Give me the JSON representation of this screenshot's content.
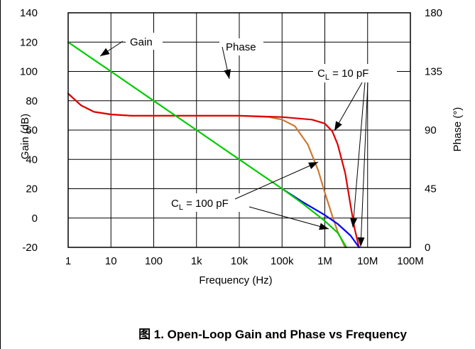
{
  "chart_data": {
    "type": "line",
    "title": "",
    "caption": "图 1. Open-Loop Gain and Phase vs Frequency",
    "xlabel": "Frequency (Hz)",
    "ylabel_left": "Gain (dB)",
    "ylabel_right": "Phase (°)",
    "xscale": "log",
    "xlim": [
      1,
      100000000
    ],
    "ylim_left": [
      -20,
      140
    ],
    "ylim_right": [
      0,
      180
    ],
    "grid": true,
    "x_tick_values": [
      1,
      10,
      100,
      1000,
      10000,
      100000,
      1000000,
      10000000,
      100000000
    ],
    "x_tick_labels": [
      "1",
      "10",
      "100",
      "1k",
      "10k",
      "100k",
      "1M",
      "10M",
      "100M"
    ],
    "y_left_ticks": [
      "140",
      "120",
      "100",
      "80",
      "60",
      "40",
      "20",
      "0",
      "-20"
    ],
    "y_left_tick_values": [
      140,
      120,
      100,
      80,
      60,
      40,
      20,
      0,
      -20
    ],
    "y_right_ticks": [
      "180",
      "135",
      "90",
      "45",
      "0"
    ],
    "y_right_tick_values": [
      180,
      135,
      90,
      45,
      0
    ],
    "annotations": {
      "gain": "Gain",
      "phase": "Phase",
      "cl10_main": "C",
      "cl10_sub": "L",
      "cl10_rest": " = 10 pF",
      "cl100_main": "C",
      "cl100_sub": "L",
      "cl100_rest": " = 100 pF"
    },
    "series": [
      {
        "axis": "left",
        "color": "#00cc00",
        "x": [
          1,
          10,
          100,
          1000,
          10000,
          100000,
          300000,
          1000000,
          2000000,
          3200000
        ],
        "values": [
          120,
          100,
          80,
          60,
          40,
          20,
          10,
          -2,
          -10,
          -20
        ]
      },
      {
        "axis": "left",
        "color": "#0000ff",
        "x": [
          100000,
          300000,
          1000000,
          2000000,
          4000000,
          6300000
        ],
        "values": [
          20,
          11,
          2,
          -4,
          -12,
          -20
        ]
      },
      {
        "axis": "right",
        "color": "#cc7a33",
        "x": [
          1,
          2,
          4,
          10,
          30,
          100,
          10000,
          50000,
          100000,
          200000,
          400000,
          700000,
          1000000,
          1500000,
          2000000,
          3000000
        ],
        "values": [
          118,
          109,
          104,
          102,
          101,
          101,
          101,
          100,
          98,
          93,
          79,
          59,
          42,
          24,
          12,
          0
        ]
      },
      {
        "axis": "right",
        "color": "#dd0000",
        "x": [
          1,
          2,
          4,
          10,
          30,
          100,
          10000,
          100000,
          500000,
          1000000,
          1500000,
          2000000,
          3000000,
          4000000,
          5000000,
          6300000
        ],
        "values": [
          118,
          109,
          104,
          102,
          101,
          101,
          101,
          100,
          98,
          95,
          89,
          79,
          57,
          32,
          14,
          0
        ]
      }
    ]
  }
}
